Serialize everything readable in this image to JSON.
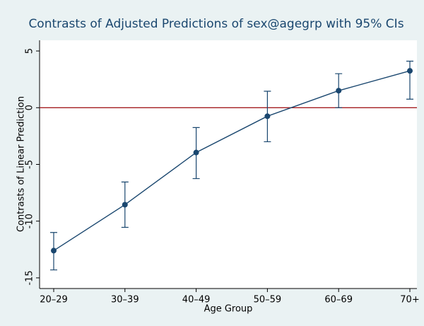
{
  "chart_data": {
    "type": "line",
    "title": "Contrasts of Adjusted Predictions of sex@agegrp with 95% CIs",
    "x_label": "Age Group",
    "y_label": "Contrasts of Linear Prediction",
    "categories": [
      "20–29",
      "30–39",
      "40–49",
      "50–59",
      "60–69",
      "70+"
    ],
    "series": [
      {
        "color": "#1a476f",
        "values": [
          -12.6,
          -8.55,
          -3.95,
          -0.75,
          1.5,
          3.25
        ],
        "lower": [
          -14.3,
          -10.55,
          -6.25,
          -3.0,
          0.0,
          0.75
        ],
        "upper": [
          -11.0,
          -6.55,
          -1.75,
          1.45,
          3.0,
          4.1
        ]
      }
    ],
    "ylim": [
      -15.94,
      5.94
    ],
    "yticks": [
      -15,
      -10,
      -5,
      0,
      5
    ],
    "reference_line": {
      "value": 0,
      "color": "#a51e21"
    },
    "background": "#eaf2f3"
  }
}
